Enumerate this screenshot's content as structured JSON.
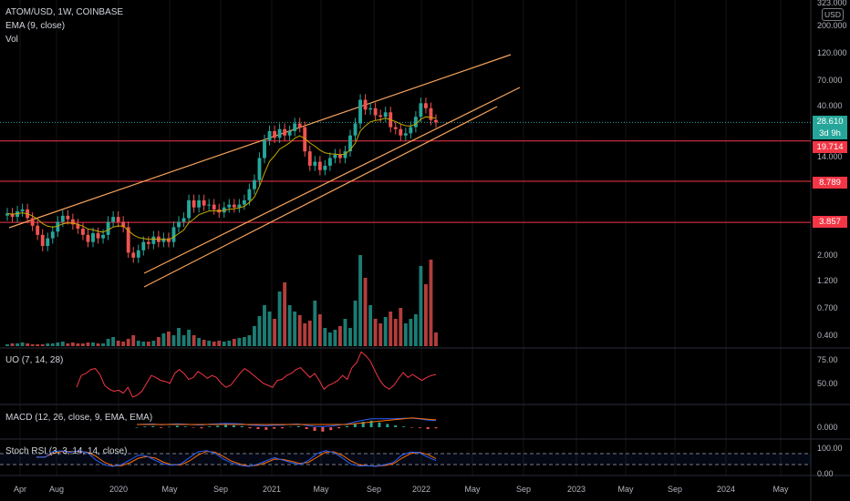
{
  "legend": {
    "main": "ATOM/USD, 1W, COINBASE",
    "ema": "EMA (9, close)",
    "vol": "Vol",
    "uo": "UO (7, 14, 28)",
    "macd": "MACD (12, 26, close, 9, EMA, EMA)",
    "stoch": "Stoch RSI (3, 3, 14, 14, close)"
  },
  "price_axis": {
    "currency": "USD",
    "ticks": [
      "323.000",
      "200.000",
      "120.000",
      "70.000",
      "40.000",
      "14.000",
      "2.000",
      "1.200",
      "0.700",
      "0.400"
    ],
    "current_price": "28.610",
    "countdown": "3d 9h",
    "levels": [
      "19.714",
      "8.789",
      "3.857"
    ]
  },
  "uo_axis": [
    "75.00",
    "50.00"
  ],
  "macd_axis": [
    "0.000"
  ],
  "stoch_axis": [
    "100.00",
    "0.00"
  ],
  "time_axis": [
    "Apr",
    "Aug",
    "2020",
    "May",
    "Sep",
    "2021",
    "May",
    "Sep",
    "2022",
    "May",
    "Sep",
    "2023",
    "May",
    "Sep",
    "2024",
    "May"
  ],
  "colors": {
    "background": "#000000",
    "up": "#26a69a",
    "down": "#ef5350",
    "level_line": "#f23645",
    "trend_line": "#f7a35c",
    "ema": "#c6a800",
    "uo": "#f23645",
    "macd_line": "#2962ff",
    "signal_line": "#ff6d00",
    "stoch_k": "#2962ff",
    "stoch_d": "#ff6d00"
  },
  "chart_data": {
    "type": "candlestick",
    "title": "ATOM/USD, 1W, COINBASE",
    "scale": "log",
    "interval": "1W",
    "current_price": 28.61,
    "horizontal_levels": [
      19.714,
      8.789,
      3.857
    ],
    "closes": [
      4.6,
      4.3,
      4.8,
      5.0,
      4.2,
      3.6,
      3.0,
      2.4,
      2.8,
      3.2,
      3.9,
      4.4,
      4.1,
      3.7,
      3.4,
      3.0,
      2.6,
      3.1,
      2.8,
      3.0,
      3.9,
      4.3,
      3.9,
      3.5,
      2.1,
      1.9,
      2.2,
      2.6,
      2.5,
      2.9,
      2.6,
      2.8,
      2.6,
      3.5,
      3.9,
      4.2,
      6.0,
      5.2,
      6.0,
      5.4,
      5.5,
      5.0,
      4.7,
      5.2,
      5.5,
      5.2,
      5.5,
      6.0,
      7.5,
      9.0,
      14.0,
      20.0,
      24.0,
      21.0,
      25.0,
      22.0,
      24.0,
      28.0,
      26.0,
      16.0,
      12.0,
      13.0,
      11.0,
      12.0,
      14.0,
      15.0,
      14.0,
      16.0,
      22.0,
      28.0,
      45.0,
      37.0,
      38.0,
      33.0,
      32.0,
      35.0,
      26.0,
      25.0,
      22.0,
      23.0,
      26.0,
      32.0,
      42.0,
      38.0,
      30.0,
      28.6
    ],
    "volume_relative": [
      0.02,
      0.03,
      0.03,
      0.04,
      0.03,
      0.02,
      0.02,
      0.02,
      0.03,
      0.03,
      0.04,
      0.05,
      0.03,
      0.04,
      0.03,
      0.03,
      0.04,
      0.04,
      0.03,
      0.03,
      0.08,
      0.1,
      0.06,
      0.05,
      0.08,
      0.12,
      0.06,
      0.05,
      0.05,
      0.06,
      0.1,
      0.14,
      0.16,
      0.12,
      0.2,
      0.12,
      0.18,
      0.12,
      0.09,
      0.07,
      0.06,
      0.05,
      0.06,
      0.05,
      0.06,
      0.08,
      0.09,
      0.1,
      0.12,
      0.22,
      0.33,
      0.45,
      0.38,
      0.3,
      0.6,
      0.7,
      0.45,
      0.38,
      0.34,
      0.25,
      0.28,
      0.5,
      0.35,
      0.2,
      0.15,
      0.18,
      0.22,
      0.3,
      0.2,
      0.5,
      1.0,
      0.75,
      0.45,
      0.3,
      0.25,
      0.32,
      0.38,
      0.3,
      0.42,
      0.25,
      0.3,
      0.35,
      0.88,
      0.68,
      0.95,
      0.15
    ],
    "uo": [
      48,
      60,
      62,
      66,
      67,
      61,
      50,
      46,
      44,
      45,
      42,
      48,
      38,
      40,
      44,
      52,
      60,
      58,
      55,
      54,
      52,
      62,
      66,
      62,
      56,
      58,
      64,
      61,
      57,
      60,
      58,
      52,
      48,
      50,
      56,
      62,
      67,
      64,
      60,
      56,
      52,
      50,
      48,
      55,
      56,
      60,
      62,
      66,
      68,
      63,
      58,
      62,
      55,
      46,
      50,
      52,
      55,
      60,
      56,
      68,
      73,
      84,
      80,
      74,
      64,
      55,
      49,
      46,
      50,
      57,
      63,
      58,
      61,
      58,
      55,
      58,
      60,
      61
    ],
    "macd_hist": [
      0,
      0.2,
      0.3,
      -0.2,
      0.1,
      0.4,
      0.2,
      -0.1,
      -0.3,
      0.2,
      0.4,
      0.6,
      0.5,
      0.3,
      -0.3,
      -0.5,
      -0.7,
      -0.4,
      -0.3,
      0.1,
      0.3,
      -0.5,
      -1,
      -1.2,
      -0.8,
      -0.3,
      0.3,
      1,
      1.5,
      1.8,
      1.3,
      0.9,
      0.5,
      0.2,
      -0.1,
      -0.2,
      -0.5,
      -0.3
    ],
    "stoch_k": [
      62,
      60,
      92,
      95,
      88,
      96,
      85,
      45,
      18,
      10,
      20,
      45,
      72,
      66,
      42,
      22,
      16,
      24,
      58,
      90,
      96,
      82,
      50,
      28,
      15,
      10,
      22,
      40,
      58,
      44,
      30,
      20,
      42,
      80,
      96,
      86,
      56,
      22,
      12,
      14,
      10,
      20,
      32,
      72,
      88,
      86,
      62,
      42
    ],
    "stoch_d": [
      60,
      62,
      82,
      92,
      92,
      92,
      88,
      66,
      32,
      14,
      14,
      30,
      55,
      64,
      55,
      32,
      18,
      18,
      40,
      72,
      92,
      88,
      64,
      38,
      22,
      12,
      16,
      30,
      50,
      48,
      38,
      26,
      32,
      60,
      88,
      90,
      70,
      40,
      18,
      13,
      12,
      15,
      25,
      55,
      80,
      88,
      76,
      52
    ]
  }
}
